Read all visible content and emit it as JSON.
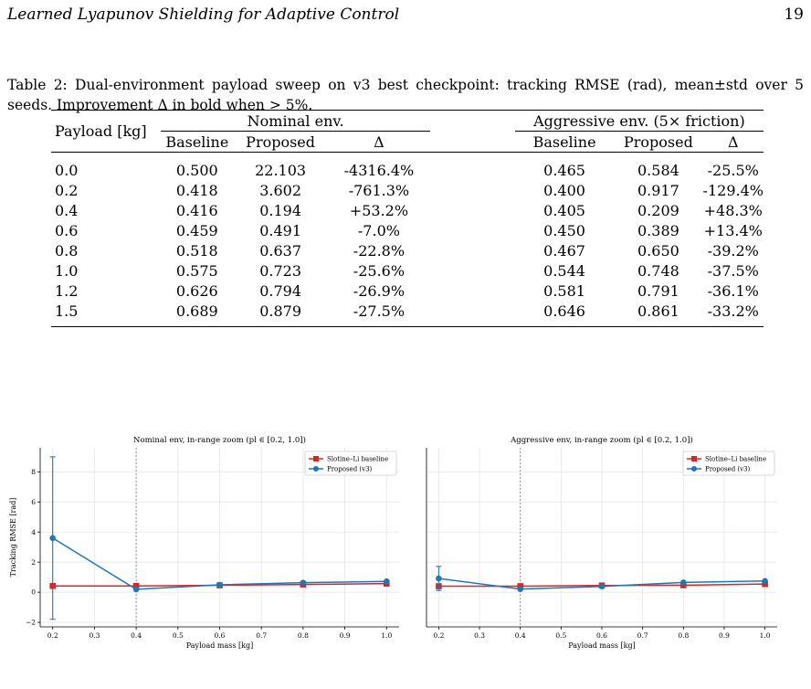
{
  "header": {
    "running_title": "Learned Lyapunov Shielding for Adaptive Control",
    "page_number": "19"
  },
  "caption": "Table 2: Dual-environment payload sweep on v3 best checkpoint: tracking RMSE (rad), mean±std over 5 seeds. Improvement Δ in bold when > 5%.",
  "table": {
    "payload_header": "Payload [kg]",
    "group_nominal": "Nominal env.",
    "group_aggressive": "Aggressive env. (5× friction)",
    "col_baseline": "Baseline",
    "col_proposed": "Proposed",
    "col_delta": "Δ",
    "rows": [
      {
        "payload": "0.0",
        "nom_base": "0.500",
        "nom_prop": "22.103",
        "nom_delta": "-4316.4%",
        "agg_base": "0.465",
        "agg_prop": "0.584",
        "agg_delta": "-25.5%"
      },
      {
        "payload": "0.2",
        "nom_base": "0.418",
        "nom_prop": "3.602",
        "nom_delta": "-761.3%",
        "agg_base": "0.400",
        "agg_prop": "0.917",
        "agg_delta": "-129.4%"
      },
      {
        "payload": "0.4",
        "nom_base": "0.416",
        "nom_prop": "0.194",
        "nom_delta": "+53.2%",
        "agg_base": "0.405",
        "agg_prop": "0.209",
        "agg_delta": "+48.3%"
      },
      {
        "payload": "0.6",
        "nom_base": "0.459",
        "nom_prop": "0.491",
        "nom_delta": "-7.0%",
        "agg_base": "0.450",
        "agg_prop": "0.389",
        "agg_delta": "+13.4%"
      },
      {
        "payload": "0.8",
        "nom_base": "0.518",
        "nom_prop": "0.637",
        "nom_delta": "-22.8%",
        "agg_base": "0.467",
        "agg_prop": "0.650",
        "agg_delta": "-39.2%"
      },
      {
        "payload": "1.0",
        "nom_base": "0.575",
        "nom_prop": "0.723",
        "nom_delta": "-25.6%",
        "agg_base": "0.544",
        "agg_prop": "0.748",
        "agg_delta": "-37.5%"
      },
      {
        "payload": "1.2",
        "nom_base": "0.626",
        "nom_prop": "0.794",
        "nom_delta": "-26.9%",
        "agg_base": "0.581",
        "agg_prop": "0.791",
        "agg_delta": "-36.1%"
      },
      {
        "payload": "1.5",
        "nom_base": "0.689",
        "nom_prop": "0.879",
        "nom_delta": "-27.5%",
        "agg_base": "0.646",
        "agg_prop": "0.861",
        "agg_delta": "-33.2%"
      }
    ]
  },
  "chart_data": [
    {
      "type": "line",
      "title": "Nominal env, in-range zoom (pl ∈ [0.2, 1.0])",
      "xlabel": "Payload mass [kg]",
      "ylabel": "Tracking RMSE [rad]",
      "xlim": [
        0.17,
        1.03
      ],
      "ylim": [
        -2.3,
        9.6
      ],
      "xticks": [
        0.2,
        0.3,
        0.4,
        0.5,
        0.6,
        0.7,
        0.8,
        0.9,
        1.0
      ],
      "yticks": [
        -2,
        0,
        2,
        4,
        6,
        8
      ],
      "vline": 0.4,
      "grid": true,
      "legend": "top-right",
      "x": [
        0.2,
        0.4,
        0.6,
        0.8,
        1.0
      ],
      "series": [
        {
          "name": "Slotine–Li baseline",
          "color": "#d62728",
          "marker": "square",
          "values": [
            0.418,
            0.416,
            0.459,
            0.518,
            0.575
          ],
          "errors": [
            0.0,
            0.0,
            0.0,
            0.0,
            0.0
          ]
        },
        {
          "name": "Proposed (v3)",
          "color": "#1f77b4",
          "marker": "circle",
          "values": [
            3.602,
            0.194,
            0.491,
            0.637,
            0.723
          ],
          "errors": [
            5.4,
            0.0,
            0.0,
            0.0,
            0.0
          ]
        }
      ]
    },
    {
      "type": "line",
      "title": "Aggressive env, in-range zoom (pl ∈ [0.2, 1.0])",
      "xlabel": "Payload mass [kg]",
      "ylabel": "",
      "xlim": [
        0.17,
        1.03
      ],
      "ylim": [
        -2.3,
        9.6
      ],
      "xticks": [
        0.2,
        0.3,
        0.4,
        0.5,
        0.6,
        0.7,
        0.8,
        0.9,
        1.0
      ],
      "yticks": [],
      "vline": 0.4,
      "grid": true,
      "legend": "top-right",
      "x": [
        0.2,
        0.4,
        0.6,
        0.8,
        1.0
      ],
      "series": [
        {
          "name": "Slotine–Li baseline",
          "color": "#d62728",
          "marker": "square",
          "values": [
            0.4,
            0.405,
            0.45,
            0.467,
            0.544
          ],
          "errors": [
            0.0,
            0.0,
            0.0,
            0.0,
            0.0
          ]
        },
        {
          "name": "Proposed (v3)",
          "color": "#1f77b4",
          "marker": "circle",
          "values": [
            0.917,
            0.209,
            0.389,
            0.65,
            0.748
          ],
          "errors": [
            0.8,
            0.0,
            0.0,
            0.0,
            0.0
          ]
        }
      ]
    }
  ]
}
